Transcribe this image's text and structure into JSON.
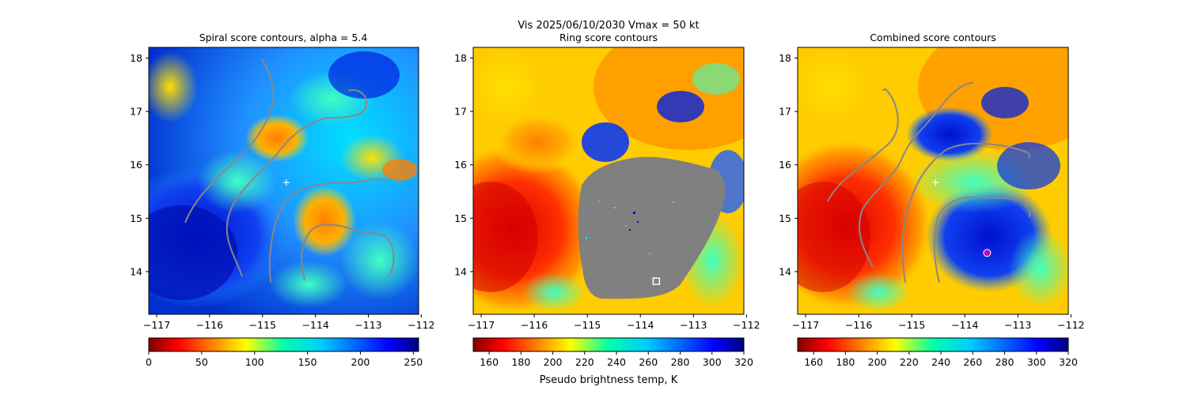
{
  "figure": {
    "suptitle_line1": "Vis  2025/06/10/2030    Vmax = 50 kt",
    "colorbar_label": "Pseudo brightness temp, K"
  },
  "chart_data": [
    {
      "type": "heatmap",
      "title": "Spiral score contours, alpha =  5.4",
      "x_ticks": [
        "−117",
        "−116",
        "−115",
        "−114",
        "−113",
        "−112"
      ],
      "x_tick_values": [
        -117,
        -116,
        -115,
        -114,
        -113,
        -112
      ],
      "y_ticks": [
        "14",
        "15",
        "16",
        "17",
        "18"
      ],
      "y_tick_values": [
        14,
        15,
        16,
        17,
        18
      ],
      "xlim": [
        -117.15,
        -112.05
      ],
      "ylim": [
        13.2,
        18.2
      ],
      "colormap": "jet_r",
      "colorbar": {
        "ticks": [
          "0",
          "50",
          "100",
          "150",
          "200",
          "250"
        ],
        "tick_values": [
          0,
          50,
          100,
          150,
          200,
          250
        ],
        "range": [
          0,
          255
        ]
      },
      "markers": [
        {
          "kind": "plus",
          "lon": -114.55,
          "lat": 15.67,
          "color": "#ffffff"
        }
      ]
    },
    {
      "type": "heatmap",
      "title": "Ring score contours",
      "x_ticks": [
        "−117",
        "−116",
        "−115",
        "−114",
        "−113",
        "−112"
      ],
      "x_tick_values": [
        -117,
        -116,
        -115,
        -114,
        -113,
        -112
      ],
      "y_ticks": [
        "14",
        "15",
        "16",
        "17",
        "18"
      ],
      "y_tick_values": [
        14,
        15,
        16,
        17,
        18
      ],
      "xlim": [
        -117.15,
        -112.05
      ],
      "ylim": [
        13.2,
        18.2
      ],
      "colormap": "jet_r",
      "colorbar": {
        "ticks": [
          "160",
          "180",
          "200",
          "220",
          "240",
          "260",
          "280",
          "300",
          "320"
        ],
        "tick_values": [
          160,
          180,
          200,
          220,
          240,
          260,
          280,
          300,
          320
        ],
        "range": [
          150,
          320
        ]
      },
      "mask_color": "#808080",
      "markers": [
        {
          "kind": "square",
          "lon": -113.7,
          "lat": 13.82,
          "color": "#ffffff"
        }
      ]
    },
    {
      "type": "heatmap",
      "title": "Combined score contours",
      "x_ticks": [
        "−117",
        "−116",
        "−115",
        "−114",
        "−113",
        "−112"
      ],
      "x_tick_values": [
        -117,
        -116,
        -115,
        -114,
        -113,
        -112
      ],
      "y_ticks": [
        "14",
        "15",
        "16",
        "17",
        "18"
      ],
      "y_tick_values": [
        14,
        15,
        16,
        17,
        18
      ],
      "xlim": [
        -117.15,
        -112.05
      ],
      "ylim": [
        13.2,
        18.2
      ],
      "colormap": "jet_r",
      "colorbar": {
        "ticks": [
          "160",
          "180",
          "200",
          "220",
          "240",
          "260",
          "280",
          "300",
          "320"
        ],
        "tick_values": [
          160,
          180,
          200,
          220,
          240,
          260,
          280,
          300,
          320
        ],
        "range": [
          150,
          320
        ]
      },
      "markers": [
        {
          "kind": "plus",
          "lon": -114.55,
          "lat": 15.67,
          "color": "#ffffff"
        },
        {
          "kind": "circle",
          "lon": -113.58,
          "lat": 14.35,
          "color": "#c000c0"
        }
      ]
    }
  ]
}
